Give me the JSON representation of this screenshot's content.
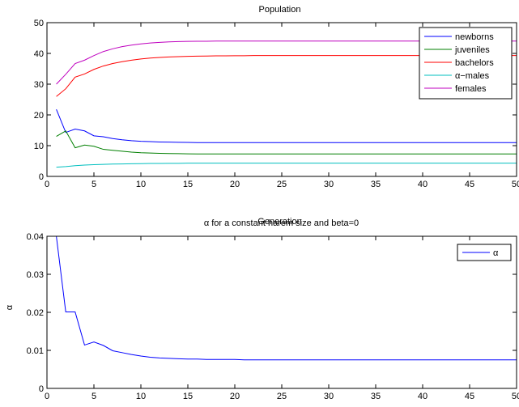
{
  "chart_data": [
    {
      "type": "line",
      "title": "Population",
      "xlabel": "Generation",
      "ylabel": "",
      "xlim": [
        0,
        50
      ],
      "ylim": [
        0,
        50
      ],
      "xticks": [
        0,
        5,
        10,
        15,
        20,
        25,
        30,
        35,
        40,
        45,
        50
      ],
      "yticks": [
        0,
        10,
        20,
        30,
        40,
        50
      ],
      "grid": false,
      "legend_position": "top-right",
      "x": [
        1,
        2,
        3,
        4,
        5,
        6,
        7,
        8,
        9,
        10,
        11,
        12,
        13,
        14,
        15,
        16,
        17,
        18,
        19,
        20,
        21,
        22,
        23,
        24,
        25,
        26,
        27,
        28,
        29,
        30,
        31,
        32,
        33,
        34,
        35,
        36,
        37,
        38,
        39,
        40,
        41,
        42,
        43,
        44,
        45,
        46,
        47,
        48,
        49,
        50
      ],
      "series": [
        {
          "name": "newborns",
          "color": "#0000ff",
          "values": [
            21.8,
            14.3,
            15.4,
            14.8,
            13.2,
            12.9,
            12.3,
            11.9,
            11.6,
            11.4,
            11.3,
            11.2,
            11.15,
            11.1,
            11.05,
            11.0,
            11.0,
            11.0,
            11.0,
            11.0,
            11.0,
            11.0,
            11.0,
            11.0,
            11.0,
            11.0,
            11.0,
            11.0,
            11.0,
            11.0,
            11.0,
            11.0,
            11.0,
            11.0,
            11.0,
            11.0,
            11.0,
            11.0,
            11.0,
            11.0,
            11.0,
            11.0,
            11.0,
            11.0,
            11.0,
            11.0,
            11.0,
            11.0,
            11.0,
            11.0
          ]
        },
        {
          "name": "juveniles",
          "color": "#007f00",
          "values": [
            13.0,
            14.8,
            9.3,
            10.2,
            9.8,
            8.8,
            8.5,
            8.2,
            7.9,
            7.7,
            7.6,
            7.5,
            7.45,
            7.4,
            7.35,
            7.3,
            7.3,
            7.3,
            7.3,
            7.3,
            7.3,
            7.3,
            7.3,
            7.3,
            7.3,
            7.3,
            7.3,
            7.3,
            7.3,
            7.3,
            7.3,
            7.3,
            7.3,
            7.3,
            7.3,
            7.3,
            7.3,
            7.3,
            7.3,
            7.3,
            7.3,
            7.3,
            7.3,
            7.3,
            7.3,
            7.3,
            7.3,
            7.3,
            7.3,
            7.3
          ]
        },
        {
          "name": "bachelors",
          "color": "#ff0000",
          "values": [
            26.0,
            28.5,
            32.3,
            33.3,
            34.8,
            35.9,
            36.7,
            37.3,
            37.8,
            38.2,
            38.5,
            38.7,
            38.85,
            38.95,
            39.05,
            39.1,
            39.15,
            39.2,
            39.2,
            39.25,
            39.25,
            39.3,
            39.3,
            39.3,
            39.3,
            39.3,
            39.3,
            39.3,
            39.3,
            39.3,
            39.3,
            39.3,
            39.3,
            39.3,
            39.3,
            39.3,
            39.3,
            39.3,
            39.3,
            39.3,
            39.3,
            39.3,
            39.3,
            39.3,
            39.3,
            39.3,
            39.3,
            39.3,
            39.3,
            39.3
          ]
        },
        {
          "name": "α−males",
          "color": "#00bfbf",
          "values": [
            3.0,
            3.2,
            3.5,
            3.7,
            3.8,
            3.9,
            4.0,
            4.05,
            4.1,
            4.15,
            4.2,
            4.2,
            4.25,
            4.25,
            4.3,
            4.3,
            4.3,
            4.3,
            4.3,
            4.3,
            4.3,
            4.3,
            4.3,
            4.3,
            4.3,
            4.3,
            4.3,
            4.3,
            4.3,
            4.3,
            4.3,
            4.3,
            4.3,
            4.3,
            4.3,
            4.3,
            4.3,
            4.3,
            4.3,
            4.3,
            4.3,
            4.3,
            4.3,
            4.3,
            4.3,
            4.3,
            4.3,
            4.3,
            4.3,
            4.3
          ]
        },
        {
          "name": "females",
          "color": "#bf00bf",
          "values": [
            30.0,
            33.2,
            36.7,
            37.8,
            39.3,
            40.6,
            41.5,
            42.2,
            42.7,
            43.1,
            43.4,
            43.6,
            43.75,
            43.85,
            43.9,
            43.95,
            43.95,
            44.0,
            44.0,
            44.0,
            44.0,
            44.0,
            44.0,
            44.0,
            44.0,
            44.0,
            44.0,
            44.0,
            44.0,
            44.0,
            44.0,
            44.0,
            44.0,
            44.0,
            44.0,
            44.0,
            44.0,
            44.0,
            44.0,
            44.0,
            44.0,
            44.0,
            44.0,
            44.0,
            44.0,
            44.0,
            44.0,
            44.0,
            44.0,
            44.0
          ]
        }
      ]
    },
    {
      "type": "line",
      "title": "α for a constant harem size and beta=0",
      "xlabel": "",
      "ylabel": "α",
      "xlim": [
        0,
        50
      ],
      "ylim": [
        0,
        0.04
      ],
      "xticks": [
        0,
        5,
        10,
        15,
        20,
        25,
        30,
        35,
        40,
        45,
        50
      ],
      "yticks": [
        0,
        0.01,
        0.02,
        0.03,
        0.04
      ],
      "ytick_labels": [
        "0",
        "0.01",
        "0.02",
        "0.03",
        "0.04"
      ],
      "grid": false,
      "legend_position": "top-right",
      "x": [
        1,
        2,
        3,
        4,
        5,
        6,
        7,
        8,
        9,
        10,
        11,
        12,
        13,
        14,
        15,
        16,
        17,
        18,
        19,
        20,
        21,
        22,
        23,
        24,
        25,
        26,
        27,
        28,
        29,
        30,
        31,
        32,
        33,
        34,
        35,
        36,
        37,
        38,
        39,
        40,
        41,
        42,
        43,
        44,
        45,
        46,
        47,
        48,
        49,
        50
      ],
      "series": [
        {
          "name": "α",
          "color": "#0000ff",
          "values": [
            0.04,
            0.0201,
            0.0201,
            0.0114,
            0.0122,
            0.0113,
            0.0099,
            0.0094,
            0.0089,
            0.0085,
            0.0082,
            0.008,
            0.0079,
            0.0078,
            0.0077,
            0.0077,
            0.0076,
            0.0076,
            0.0076,
            0.0076,
            0.0075,
            0.0075,
            0.0075,
            0.0075,
            0.0075,
            0.0075,
            0.0075,
            0.0075,
            0.0075,
            0.0075,
            0.0075,
            0.0075,
            0.0075,
            0.0075,
            0.0075,
            0.0075,
            0.0075,
            0.0075,
            0.0075,
            0.0075,
            0.0075,
            0.0075,
            0.0075,
            0.0075,
            0.0075,
            0.0075,
            0.0075,
            0.0075,
            0.0075,
            0.0075
          ]
        }
      ]
    }
  ]
}
